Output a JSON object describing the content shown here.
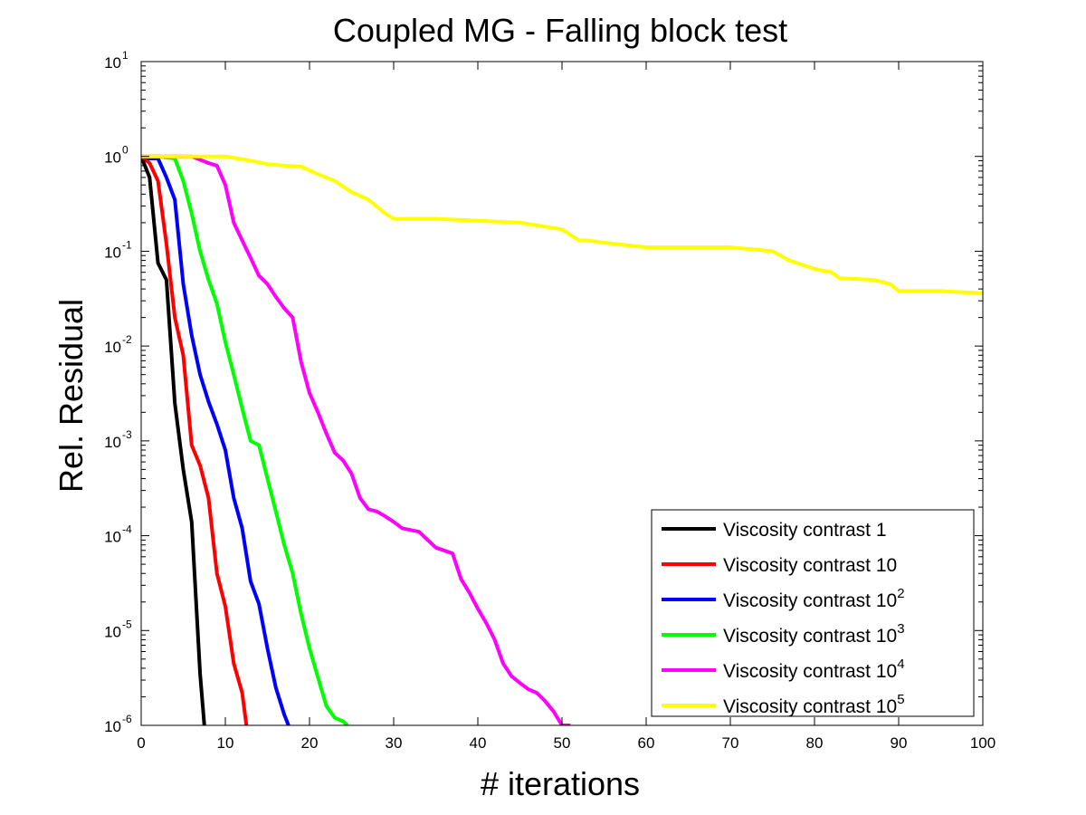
{
  "chart_data": {
    "type": "line",
    "title": "Coupled MG - Falling block test",
    "xlabel": "# iterations",
    "ylabel": "Rel. Residual",
    "xlim": [
      0,
      100
    ],
    "ylim": [
      1e-06,
      10
    ],
    "yscale": "log",
    "grid": false,
    "legend_position": "bottom-right",
    "x_ticks": [
      "0",
      "10",
      "20",
      "30",
      "40",
      "50",
      "60",
      "70",
      "80",
      "90",
      "100"
    ],
    "y_ticks": [
      {
        "base": "10",
        "exp": "-6"
      },
      {
        "base": "10",
        "exp": "-5"
      },
      {
        "base": "10",
        "exp": "-4"
      },
      {
        "base": "10",
        "exp": "-3"
      },
      {
        "base": "10",
        "exp": "-2"
      },
      {
        "base": "10",
        "exp": "-1"
      },
      {
        "base": "10",
        "exp": "0"
      },
      {
        "base": "10",
        "exp": "1"
      }
    ],
    "series": [
      {
        "name": "Viscosity contrast 1",
        "name_sup": "",
        "color": "#000000",
        "x": [
          0,
          1,
          2,
          3,
          4,
          5,
          6,
          7,
          7.5
        ],
        "y": [
          1,
          0.6,
          0.075,
          0.05,
          0.0025,
          0.0005,
          0.00014,
          3.5e-06,
          1e-06
        ]
      },
      {
        "name": "Viscosity contrast 10",
        "name_sup": "",
        "color": "#ff0000",
        "x": [
          0,
          1,
          2,
          3,
          4,
          5,
          6,
          7,
          8,
          9,
          10,
          11,
          12,
          12.5
        ],
        "y": [
          1,
          0.85,
          0.55,
          0.12,
          0.02,
          0.008,
          0.0009,
          0.00055,
          0.00025,
          4e-05,
          1.8e-05,
          4.5e-06,
          2.2e-06,
          1e-06
        ]
      },
      {
        "name": "Viscosity contrast 10",
        "name_sup": "2",
        "color": "#0000ff",
        "x": [
          0,
          1,
          2,
          3,
          4,
          5,
          6,
          7,
          8,
          9,
          10,
          11,
          12,
          13,
          14,
          15,
          16,
          17,
          17.5
        ],
        "y": [
          1,
          0.95,
          0.95,
          0.6,
          0.35,
          0.045,
          0.013,
          0.005,
          0.0026,
          0.0015,
          0.0008,
          0.00025,
          0.00012,
          3.3e-05,
          1.9e-05,
          6.5e-06,
          2.5e-06,
          1.3e-06,
          1e-06
        ]
      },
      {
        "name": "Viscosity contrast 10",
        "name_sup": "3",
        "color": "#00ff00",
        "x": [
          0,
          2,
          4,
          5,
          6,
          7,
          8,
          9,
          10,
          11,
          12,
          13,
          14,
          15,
          16,
          17,
          18,
          19,
          20,
          21,
          22,
          23,
          24,
          24.5
        ],
        "y": [
          1,
          1,
          0.95,
          0.55,
          0.25,
          0.1,
          0.05,
          0.028,
          0.011,
          0.005,
          0.0022,
          0.001,
          0.0009,
          0.0004,
          0.00018,
          8e-05,
          4e-05,
          1.5e-05,
          6.5e-06,
          3.2e-06,
          1.6e-06,
          1.2e-06,
          1.1e-06,
          1e-06
        ]
      },
      {
        "name": "Viscosity contrast 10",
        "name_sup": "4",
        "color": "#ff00ff",
        "x": [
          0,
          4,
          6,
          8,
          9,
          10,
          11,
          12,
          13,
          14,
          15,
          16,
          17,
          18,
          19,
          20,
          21,
          22,
          23,
          24,
          25,
          26,
          27,
          28,
          29,
          30,
          31,
          33,
          35,
          37,
          38,
          39,
          40,
          41,
          42,
          43,
          44,
          45,
          46,
          47,
          48,
          49,
          50,
          50.5,
          51
        ],
        "y": [
          1,
          1,
          1,
          0.85,
          0.8,
          0.5,
          0.2,
          0.13,
          0.085,
          0.055,
          0.045,
          0.033,
          0.025,
          0.02,
          0.0068,
          0.0032,
          0.002,
          0.0012,
          0.00075,
          0.00062,
          0.00045,
          0.00025,
          0.00019,
          0.00018,
          0.00016,
          0.00014,
          0.00012,
          0.00011,
          7.5e-05,
          6.5e-05,
          3.5e-05,
          2.5e-05,
          1.7e-05,
          1.2e-05,
          8e-06,
          4.5e-06,
          3.3e-06,
          2.8e-06,
          2.4e-06,
          2.2e-06,
          1.8e-06,
          1.4e-06,
          1e-06,
          1e-06,
          1e-06
        ]
      },
      {
        "name": "Viscosity contrast 10",
        "name_sup": "5",
        "color": "#ffff00",
        "x": [
          0,
          10,
          13,
          15,
          17,
          19,
          21,
          23,
          25,
          27,
          29,
          30,
          35,
          40,
          45,
          50,
          52,
          53,
          56,
          60,
          65,
          70,
          75,
          77,
          80,
          82,
          83,
          87,
          89,
          90,
          95,
          100
        ],
        "y": [
          1,
          1,
          0.9,
          0.83,
          0.8,
          0.78,
          0.65,
          0.55,
          0.42,
          0.35,
          0.25,
          0.22,
          0.22,
          0.21,
          0.2,
          0.17,
          0.13,
          0.13,
          0.12,
          0.11,
          0.11,
          0.11,
          0.1,
          0.08,
          0.065,
          0.06,
          0.052,
          0.05,
          0.045,
          0.038,
          0.038,
          0.036
        ]
      }
    ]
  }
}
